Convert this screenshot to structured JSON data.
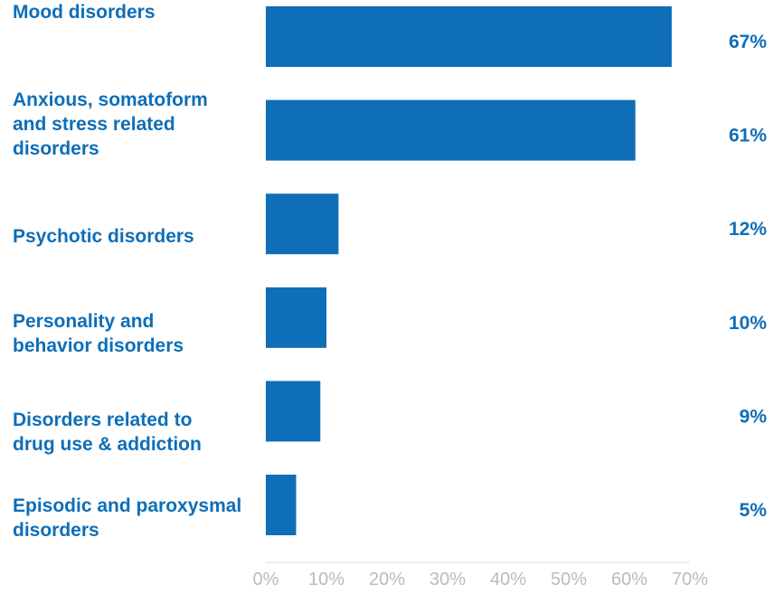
{
  "chart_data": {
    "type": "bar",
    "orientation": "horizontal",
    "categories": [
      [
        "Mood disorders"
      ],
      [
        "Anxious, somatoform",
        "and stress related",
        "disorders"
      ],
      [
        "Psychotic disorders"
      ],
      [
        "Personality and",
        "behavior disorders"
      ],
      [
        "Disorders related to",
        "drug use & addiction"
      ],
      [
        "Episodic and paroxysmal",
        "disorders"
      ]
    ],
    "values": [
      67,
      61,
      12,
      10,
      9,
      5
    ],
    "value_labels": [
      "67%",
      "61%",
      "12%",
      "10%",
      "9%",
      "5%"
    ],
    "xlim": [
      0,
      70
    ],
    "x_ticks": [
      0,
      10,
      20,
      30,
      40,
      50,
      60,
      70
    ],
    "x_tick_labels": [
      "0%",
      "10%",
      "20%",
      "30%",
      "40%",
      "50%",
      "60%",
      "70%"
    ],
    "grid": false,
    "colors": {
      "bar": "#0E6EB8",
      "label": "#0E6EB8",
      "tick": "#BBBBBB",
      "axis": "#DDDDDD"
    }
  }
}
